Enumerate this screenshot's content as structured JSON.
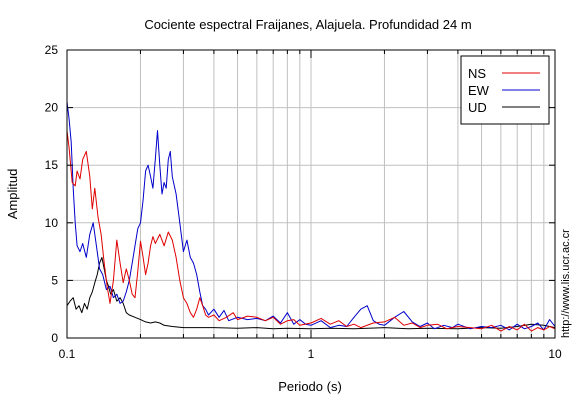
{
  "chart_data": {
    "type": "line",
    "title": "Cociente espectral Fraijanes, Alajuela. Profundidad 24 m",
    "xlabel": "Periodo (s)",
    "ylabel": "Amplitud",
    "x_scale": "log",
    "xlim": [
      0.1,
      10
    ],
    "ylim": [
      0,
      25
    ],
    "x_ticks": [
      {
        "value": 0.1,
        "label": "0.1"
      },
      {
        "value": 1,
        "label": "1"
      },
      {
        "value": 10,
        "label": "10"
      }
    ],
    "y_ticks": [
      {
        "value": 0,
        "label": "0"
      },
      {
        "value": 5,
        "label": "5"
      },
      {
        "value": 10,
        "label": "10"
      },
      {
        "value": 15,
        "label": "15"
      },
      {
        "value": 20,
        "label": "20"
      },
      {
        "value": 25,
        "label": "25"
      }
    ],
    "grid": true,
    "legend_position": "top-right",
    "series": [
      {
        "name": "NS",
        "color": "#e00000",
        "points": [
          [
            0.1,
            18
          ],
          [
            0.102,
            16.5
          ],
          [
            0.105,
            13.5
          ],
          [
            0.108,
            13.2
          ],
          [
            0.11,
            14.5
          ],
          [
            0.113,
            13.8
          ],
          [
            0.116,
            15.5
          ],
          [
            0.12,
            16.2
          ],
          [
            0.124,
            14
          ],
          [
            0.127,
            11.2
          ],
          [
            0.13,
            13
          ],
          [
            0.134,
            10.5
          ],
          [
            0.138,
            9
          ],
          [
            0.142,
            6.5
          ],
          [
            0.146,
            4.5
          ],
          [
            0.15,
            3
          ],
          [
            0.155,
            5
          ],
          [
            0.16,
            8.5
          ],
          [
            0.165,
            6.5
          ],
          [
            0.17,
            4.8
          ],
          [
            0.175,
            6
          ],
          [
            0.18,
            5
          ],
          [
            0.185,
            3.8
          ],
          [
            0.19,
            3.5
          ],
          [
            0.195,
            5.8
          ],
          [
            0.2,
            8.4
          ],
          [
            0.205,
            7
          ],
          [
            0.21,
            5.5
          ],
          [
            0.215,
            6.5
          ],
          [
            0.22,
            8
          ],
          [
            0.225,
            8.8
          ],
          [
            0.23,
            8.2
          ],
          [
            0.24,
            9
          ],
          [
            0.25,
            8
          ],
          [
            0.26,
            9.2
          ],
          [
            0.27,
            8.5
          ],
          [
            0.28,
            7
          ],
          [
            0.29,
            5
          ],
          [
            0.3,
            3.5
          ],
          [
            0.31,
            3
          ],
          [
            0.32,
            2.2
          ],
          [
            0.33,
            1.8
          ],
          [
            0.34,
            2.5
          ],
          [
            0.35,
            3.5
          ],
          [
            0.36,
            2.8
          ],
          [
            0.37,
            2
          ],
          [
            0.38,
            1.8
          ],
          [
            0.4,
            2
          ],
          [
            0.42,
            1.5
          ],
          [
            0.45,
            1.8
          ],
          [
            0.48,
            2.2
          ],
          [
            0.5,
            1.6
          ],
          [
            0.55,
            1.9
          ],
          [
            0.6,
            1.8
          ],
          [
            0.65,
            1.5
          ],
          [
            0.7,
            1.8
          ],
          [
            0.75,
            1.2
          ],
          [
            0.8,
            1.5
          ],
          [
            0.85,
            1.6
          ],
          [
            0.9,
            1.1
          ],
          [
            1,
            1.3
          ],
          [
            1.1,
            1.7
          ],
          [
            1.2,
            1.2
          ],
          [
            1.3,
            1.5
          ],
          [
            1.4,
            1
          ],
          [
            1.5,
            1.2
          ],
          [
            1.6,
            0.9
          ],
          [
            1.8,
            1.3
          ],
          [
            2,
            1.4
          ],
          [
            2.2,
            1.8
          ],
          [
            2.4,
            1.1
          ],
          [
            2.6,
            1.3
          ],
          [
            2.8,
            0.9
          ],
          [
            3,
            1.1
          ],
          [
            3.3,
            1.2
          ],
          [
            3.6,
            0.8
          ],
          [
            4,
            1
          ],
          [
            4.5,
            0.9
          ],
          [
            5,
            0.8
          ],
          [
            5.5,
            1.1
          ],
          [
            6,
            0.6
          ],
          [
            6.5,
            1
          ],
          [
            7,
            0.7
          ],
          [
            7.5,
            1.2
          ],
          [
            8,
            0.6
          ],
          [
            8.5,
            0.9
          ],
          [
            9,
            0.7
          ],
          [
            9.5,
            1
          ],
          [
            10,
            0.8
          ]
        ]
      },
      {
        "name": "EW",
        "color": "#0000cc",
        "points": [
          [
            0.1,
            20.5
          ],
          [
            0.102,
            19
          ],
          [
            0.104,
            17
          ],
          [
            0.106,
            13
          ],
          [
            0.108,
            10
          ],
          [
            0.11,
            8
          ],
          [
            0.113,
            7.5
          ],
          [
            0.116,
            8.2
          ],
          [
            0.12,
            7
          ],
          [
            0.124,
            9
          ],
          [
            0.128,
            10
          ],
          [
            0.132,
            8
          ],
          [
            0.136,
            6
          ],
          [
            0.14,
            5.5
          ],
          [
            0.145,
            4.2
          ],
          [
            0.15,
            4.5
          ],
          [
            0.155,
            3.5
          ],
          [
            0.16,
            3.8
          ],
          [
            0.165,
            3
          ],
          [
            0.17,
            3.2
          ],
          [
            0.175,
            4
          ],
          [
            0.18,
            5
          ],
          [
            0.185,
            6.5
          ],
          [
            0.19,
            8
          ],
          [
            0.195,
            9.5
          ],
          [
            0.2,
            10
          ],
          [
            0.205,
            12
          ],
          [
            0.21,
            14.5
          ],
          [
            0.215,
            15
          ],
          [
            0.22,
            14
          ],
          [
            0.225,
            13
          ],
          [
            0.23,
            15.5
          ],
          [
            0.235,
            18
          ],
          [
            0.24,
            15
          ],
          [
            0.245,
            12.5
          ],
          [
            0.25,
            13.5
          ],
          [
            0.255,
            13
          ],
          [
            0.26,
            15.5
          ],
          [
            0.265,
            16.2
          ],
          [
            0.27,
            14
          ],
          [
            0.28,
            12.5
          ],
          [
            0.29,
            10
          ],
          [
            0.3,
            7.5
          ],
          [
            0.31,
            8.5
          ],
          [
            0.32,
            7
          ],
          [
            0.33,
            6.5
          ],
          [
            0.34,
            5.5
          ],
          [
            0.35,
            4
          ],
          [
            0.36,
            2.8
          ],
          [
            0.37,
            2.5
          ],
          [
            0.38,
            2
          ],
          [
            0.4,
            2.5
          ],
          [
            0.42,
            1.8
          ],
          [
            0.44,
            2.4
          ],
          [
            0.46,
            1.5
          ],
          [
            0.5,
            1.8
          ],
          [
            0.55,
            1.6
          ],
          [
            0.6,
            1.7
          ],
          [
            0.65,
            1.5
          ],
          [
            0.7,
            1.9
          ],
          [
            0.75,
            1.3
          ],
          [
            0.8,
            2.2
          ],
          [
            0.85,
            1.2
          ],
          [
            0.9,
            1.6
          ],
          [
            0.95,
            1.2
          ],
          [
            1,
            1.1
          ],
          [
            1.1,
            1.5
          ],
          [
            1.2,
            0.9
          ],
          [
            1.3,
            1.1
          ],
          [
            1.4,
            1
          ],
          [
            1.5,
            1.8
          ],
          [
            1.6,
            2.5
          ],
          [
            1.7,
            2.8
          ],
          [
            1.8,
            1.5
          ],
          [
            1.9,
            1.2
          ],
          [
            2,
            1.1
          ],
          [
            2.2,
            1.8
          ],
          [
            2.4,
            2.3
          ],
          [
            2.6,
            1.4
          ],
          [
            2.8,
            1
          ],
          [
            3,
            1.3
          ],
          [
            3.2,
            0.8
          ],
          [
            3.5,
            1.1
          ],
          [
            3.8,
            0.9
          ],
          [
            4,
            1.2
          ],
          [
            4.5,
            0.8
          ],
          [
            5,
            1
          ],
          [
            5.5,
            0.9
          ],
          [
            6,
            1.1
          ],
          [
            6.5,
            0.7
          ],
          [
            7,
            1.2
          ],
          [
            7.5,
            0.8
          ],
          [
            8,
            1
          ],
          [
            8.5,
            1.3
          ],
          [
            9,
            0.7
          ],
          [
            9.5,
            1.6
          ],
          [
            10,
            1
          ]
        ]
      },
      {
        "name": "UD",
        "color": "#000000",
        "points": [
          [
            0.1,
            2.8
          ],
          [
            0.103,
            3.2
          ],
          [
            0.106,
            3.5
          ],
          [
            0.109,
            2.5
          ],
          [
            0.112,
            2.8
          ],
          [
            0.115,
            2.2
          ],
          [
            0.118,
            3
          ],
          [
            0.121,
            2.5
          ],
          [
            0.124,
            3.5
          ],
          [
            0.127,
            4
          ],
          [
            0.13,
            4.8
          ],
          [
            0.133,
            5.5
          ],
          [
            0.136,
            6.5
          ],
          [
            0.139,
            7
          ],
          [
            0.142,
            6
          ],
          [
            0.145,
            5
          ],
          [
            0.148,
            4.5
          ],
          [
            0.151,
            3.8
          ],
          [
            0.155,
            4.2
          ],
          [
            0.16,
            3.2
          ],
          [
            0.165,
            3.5
          ],
          [
            0.17,
            3
          ],
          [
            0.175,
            2.2
          ],
          [
            0.18,
            2
          ],
          [
            0.19,
            1.8
          ],
          [
            0.2,
            1.6
          ],
          [
            0.21,
            1.4
          ],
          [
            0.22,
            1.3
          ],
          [
            0.23,
            1.4
          ],
          [
            0.24,
            1.3
          ],
          [
            0.25,
            1.1
          ],
          [
            0.27,
            1
          ],
          [
            0.3,
            0.9
          ],
          [
            0.35,
            0.9
          ],
          [
            0.4,
            0.9
          ],
          [
            0.5,
            0.85
          ],
          [
            0.6,
            0.9
          ],
          [
            0.7,
            0.8
          ],
          [
            0.8,
            0.85
          ],
          [
            1,
            0.8
          ],
          [
            1.2,
            0.85
          ],
          [
            1.5,
            0.8
          ],
          [
            2,
            0.9
          ],
          [
            2.5,
            0.8
          ],
          [
            3,
            0.85
          ],
          [
            4,
            0.8
          ],
          [
            5,
            0.9
          ],
          [
            6,
            0.85
          ],
          [
            7,
            1
          ],
          [
            8,
            1.2
          ],
          [
            9,
            1.1
          ],
          [
            10,
            0.9
          ]
        ]
      }
    ]
  },
  "credit": "http://www.lis.ucr.ac.cr"
}
